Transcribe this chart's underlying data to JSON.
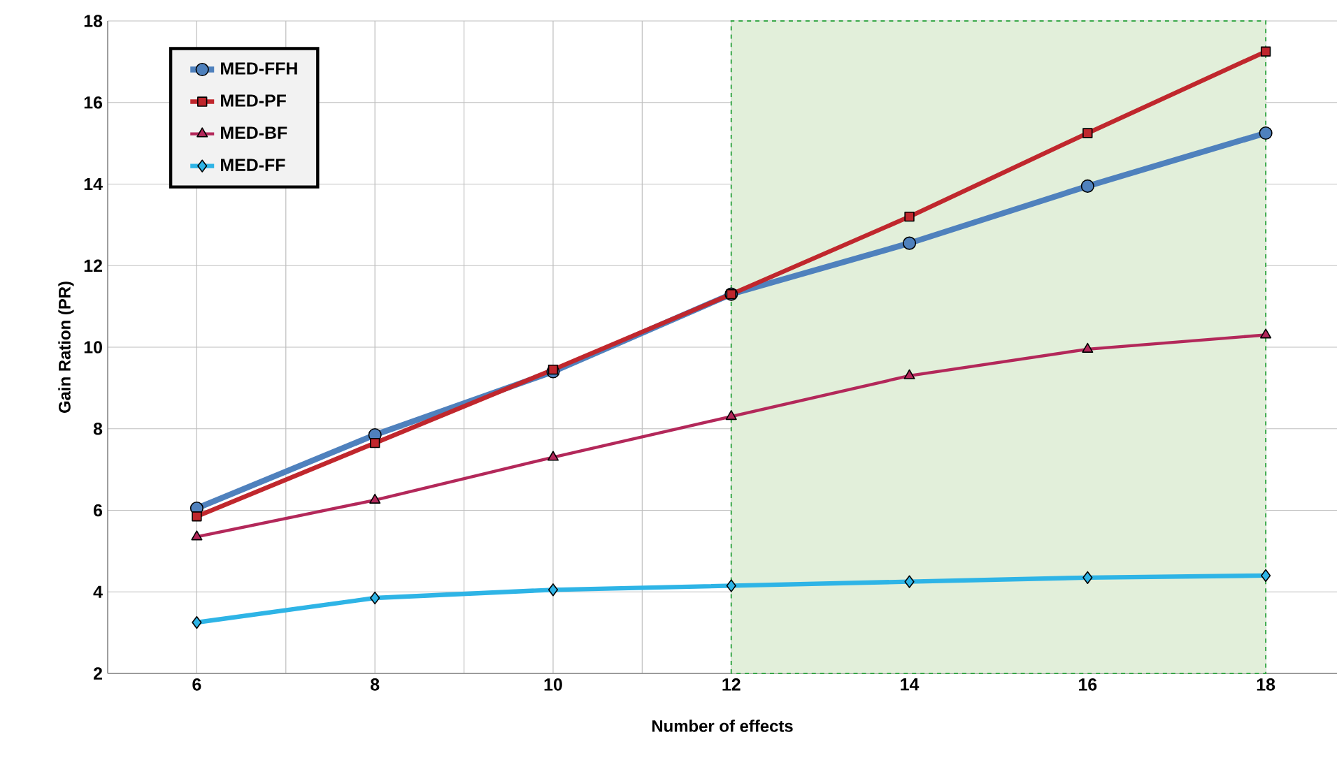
{
  "chart_data": {
    "type": "line",
    "xlabel": "Number of effects",
    "ylabel": "Gain Ration (PR)",
    "x": [
      6,
      8,
      10,
      12,
      14,
      16,
      18
    ],
    "xlim": [
      5,
      18.8
    ],
    "ylim": [
      2,
      18
    ],
    "xticks": [
      6,
      8,
      10,
      12,
      14,
      16,
      18
    ],
    "yticks": [
      2,
      4,
      6,
      8,
      10,
      12,
      14,
      16,
      18
    ],
    "grid": true,
    "legend": "top left",
    "bands": [
      {
        "axis": "x",
        "from": 12,
        "to": 18,
        "color": "#e2efda"
      }
    ],
    "series": [
      {
        "name": "MED-FFH",
        "color": "#4f81bd",
        "marker": "circle",
        "values": [
          6.05,
          7.85,
          9.4,
          11.3,
          12.55,
          13.95,
          15.25
        ]
      },
      {
        "name": "MED-PF",
        "color": "#c0272d",
        "marker": "square",
        "values": [
          5.85,
          7.65,
          9.45,
          11.3,
          13.2,
          15.25,
          17.25
        ]
      },
      {
        "name": "MED-BF",
        "color": "#b3285a",
        "marker": "triangle",
        "values": [
          5.35,
          6.25,
          7.3,
          8.3,
          9.3,
          9.95,
          10.3
        ]
      },
      {
        "name": "MED-FF",
        "color": "#2eb4e6",
        "marker": "diamond",
        "values": [
          3.25,
          3.85,
          4.05,
          4.15,
          4.25,
          4.35,
          4.4
        ]
      }
    ]
  }
}
